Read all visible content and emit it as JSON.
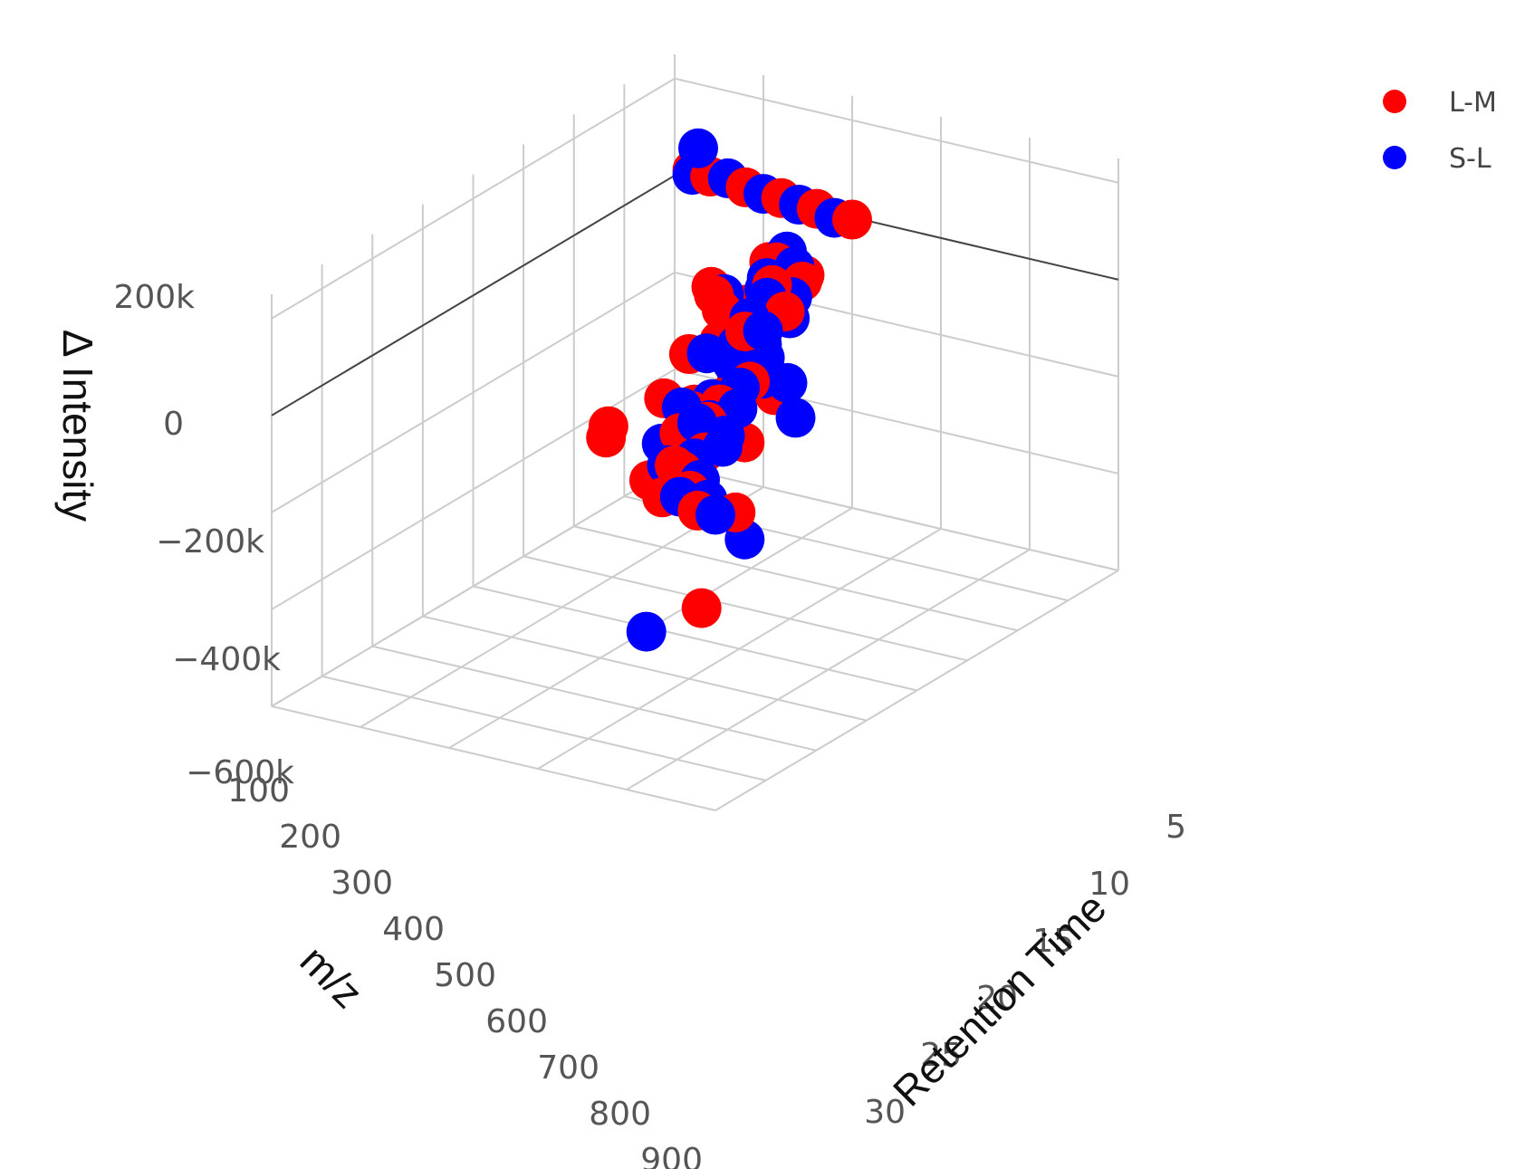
{
  "chart_data": {
    "type": "scatter",
    "projection": "3d",
    "axes": {
      "x": {
        "title": "m/z",
        "range": [
          100,
          900
        ],
        "ticks": [
          "100",
          "200",
          "300",
          "400",
          "500",
          "600",
          "700",
          "800",
          "900"
        ]
      },
      "y": {
        "title": "Retention Time",
        "range": [
          5,
          30
        ],
        "ticks": [
          "5",
          "10",
          "15",
          "20",
          "25",
          "30"
        ]
      },
      "z": {
        "title": "Δ Intensity",
        "range": [
          -600000,
          250000
        ],
        "ticks": [
          "200k",
          "0",
          "−200k",
          "−400k",
          "−600k"
        ]
      }
    },
    "grid": true,
    "legend": {
      "position": "top-right"
    },
    "series": [
      {
        "name": "L-M",
        "color": "#ff0000",
        "points": [
          [
            100,
            6,
            20000
          ],
          [
            100,
            7,
            15000
          ],
          [
            100,
            9,
            10000
          ],
          [
            100,
            11,
            5000
          ],
          [
            100,
            13,
            0
          ],
          [
            100,
            15,
            -5000
          ],
          [
            300,
            16,
            40000
          ],
          [
            300,
            18,
            30000
          ],
          [
            320,
            17,
            60000
          ],
          [
            340,
            19,
            50000
          ],
          [
            360,
            18,
            20000
          ],
          [
            380,
            17,
            10000
          ],
          [
            400,
            19,
            80000
          ],
          [
            410,
            20,
            40000
          ],
          [
            420,
            18,
            -20000
          ],
          [
            430,
            20,
            -120000
          ],
          [
            450,
            17,
            90000
          ],
          [
            470,
            19,
            -60000
          ],
          [
            480,
            18,
            100000
          ],
          [
            500,
            19,
            90000
          ],
          [
            520,
            21,
            -40000
          ],
          [
            540,
            20,
            60000
          ],
          [
            560,
            22,
            -120000
          ],
          [
            580,
            21,
            -70000
          ],
          [
            600,
            20,
            70000
          ],
          [
            620,
            24,
            60000
          ],
          [
            640,
            23,
            30000
          ],
          [
            660,
            22,
            20000
          ],
          [
            680,
            24,
            50000
          ],
          [
            700,
            23,
            40000
          ],
          [
            700,
            26,
            230000
          ],
          [
            720,
            22,
            70000
          ],
          [
            740,
            25,
            60000
          ],
          [
            760,
            24,
            40000
          ],
          [
            780,
            26,
            30000
          ],
          [
            800,
            25,
            10000
          ],
          [
            820,
            24,
            -20000
          ],
          [
            840,
            26,
            40000
          ],
          [
            860,
            27,
            50000
          ],
          [
            880,
            28,
            30000
          ],
          [
            900,
            27,
            20000
          ],
          [
            900,
            29,
            10000
          ],
          [
            880,
            29,
            0
          ],
          [
            860,
            30,
            -10000
          ],
          [
            800,
            21,
            30000
          ],
          [
            760,
            20,
            20000
          ],
          [
            540,
            19,
            -500000
          ]
        ]
      },
      {
        "name": "S-L",
        "color": "#0000ff",
        "points": [
          [
            100,
            6,
            10000
          ],
          [
            100,
            8,
            20000
          ],
          [
            100,
            10,
            5000
          ],
          [
            100,
            12,
            0
          ],
          [
            100,
            14,
            -10000
          ],
          [
            300,
            12,
            240000
          ],
          [
            300,
            17,
            70000
          ],
          [
            320,
            18,
            60000
          ],
          [
            340,
            17,
            40000
          ],
          [
            360,
            19,
            30000
          ],
          [
            380,
            18,
            50000
          ],
          [
            400,
            20,
            20000
          ],
          [
            410,
            19,
            60000
          ],
          [
            420,
            19,
            -30000
          ],
          [
            440,
            21,
            -80000
          ],
          [
            460,
            18,
            90000
          ],
          [
            480,
            20,
            70000
          ],
          [
            500,
            20,
            40000
          ],
          [
            520,
            22,
            30000
          ],
          [
            540,
            21,
            60000
          ],
          [
            560,
            23,
            20000
          ],
          [
            580,
            22,
            50000
          ],
          [
            600,
            21,
            80000
          ],
          [
            620,
            23,
            90000
          ],
          [
            640,
            24,
            60000
          ],
          [
            660,
            23,
            40000
          ],
          [
            680,
            25,
            50000
          ],
          [
            700,
            24,
            30000
          ],
          [
            700,
            27,
            240000
          ],
          [
            720,
            23,
            60000
          ],
          [
            740,
            26,
            40000
          ],
          [
            760,
            25,
            70000
          ],
          [
            780,
            27,
            50000
          ],
          [
            800,
            26,
            30000
          ],
          [
            820,
            25,
            20000
          ],
          [
            840,
            27,
            10000
          ],
          [
            860,
            28,
            40000
          ],
          [
            880,
            29,
            20000
          ],
          [
            900,
            28,
            30000
          ],
          [
            900,
            30,
            10000
          ],
          [
            560,
            22,
            -320000
          ],
          [
            720,
            21,
            -420000
          ],
          [
            600,
            26,
            -10000
          ],
          [
            760,
            23,
            10000
          ]
        ]
      }
    ]
  }
}
